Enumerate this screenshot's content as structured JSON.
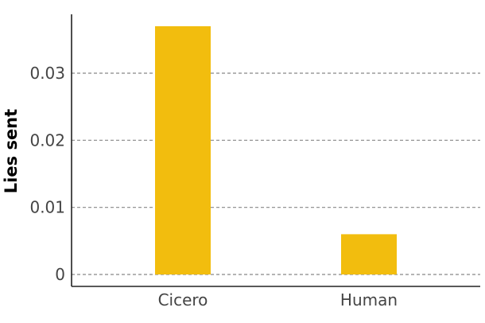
{
  "chart_data": {
    "type": "bar",
    "categories": [
      "Cicero",
      "Human"
    ],
    "values": [
      0.037,
      0.006
    ],
    "title": "",
    "xlabel": "",
    "ylabel": "Lies sent",
    "ylim": [
      0,
      0.038
    ],
    "yticks": [
      0,
      0.01,
      0.02,
      0.03
    ],
    "ytick_labels": [
      "0",
      "0.01",
      "0.02",
      "0.03"
    ],
    "grid": "horizontal dashed",
    "bar_color": "#F2BD0E",
    "grid_color": "#888888",
    "axis_color": "#222222"
  }
}
